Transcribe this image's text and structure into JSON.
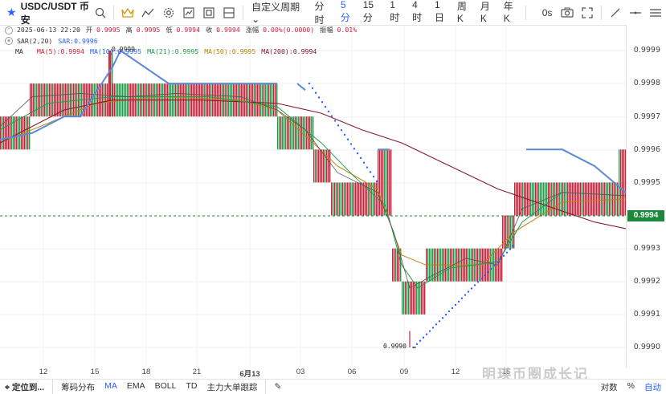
{
  "symbol": {
    "name": "USDC/USDT 币安"
  },
  "toolbar": {
    "custom_period": "自定义周期",
    "timeframes": [
      "分时",
      "5分",
      "15分",
      "1时",
      "4时",
      "1日",
      "周K",
      "月K",
      "年K"
    ],
    "active_timeframe": "5分",
    "zero_s": "0s"
  },
  "legend": {
    "datetime": "2025-06-13 22:20",
    "open_label": "开",
    "open": "0.9995",
    "high_label": "高",
    "high": "0.9995",
    "low_label": "低",
    "low": "0.9994",
    "close_label": "收",
    "close": "0.9994",
    "change_label": "涨幅",
    "change": "0.00%(0.0000)",
    "amp_label": "振幅",
    "amp": "0.01%",
    "sar_name": "SAR(2,20)",
    "sar_value": "SAR:0.9996",
    "ma_name": "MA",
    "ma5": "MA(5):0.9994",
    "ma10": "MA(10):0.9995",
    "ma21": "MA(21):0.9995",
    "ma50": "MA(50):0.9995",
    "ma200": "MA(200):0.9994"
  },
  "price_axis": {
    "ticks": [
      "0.9999",
      "0.9998",
      "0.9997",
      "0.9996",
      "0.9995",
      "0.9994",
      "0.9993",
      "0.9992",
      "0.9991",
      "0.9990"
    ],
    "current": "0.9994"
  },
  "time_axis": {
    "ticks": [
      "12",
      "15",
      "18",
      "21",
      "6月13",
      "03",
      "06",
      "09",
      "12",
      "15"
    ]
  },
  "annotations": {
    "max_label": "0.9999",
    "min_label": "0.9990"
  },
  "bottom": {
    "locate": "定位到...",
    "items": [
      "筹码分布",
      "MA",
      "EMA",
      "BOLL",
      "TD",
      "主力大单跟踪"
    ],
    "active_item": "MA",
    "right_items": [
      "对数",
      "%",
      "自动"
    ]
  },
  "watermark": "明瑛币圈成长记",
  "colors": {
    "up": "#1e9e4a",
    "down": "#d0203a",
    "accent": "#2962ff",
    "ma10": "#5b8ad6",
    "ma200": "#8b1a2b"
  },
  "chart_data": {
    "type": "candlestick",
    "ylim": [
      0.99895,
      0.99995
    ],
    "ma": [
      "MA(5)",
      "MA(10)",
      "MA(21)",
      "MA(50)",
      "MA(200)"
    ],
    "indicator": "SAR(2,20)"
  }
}
